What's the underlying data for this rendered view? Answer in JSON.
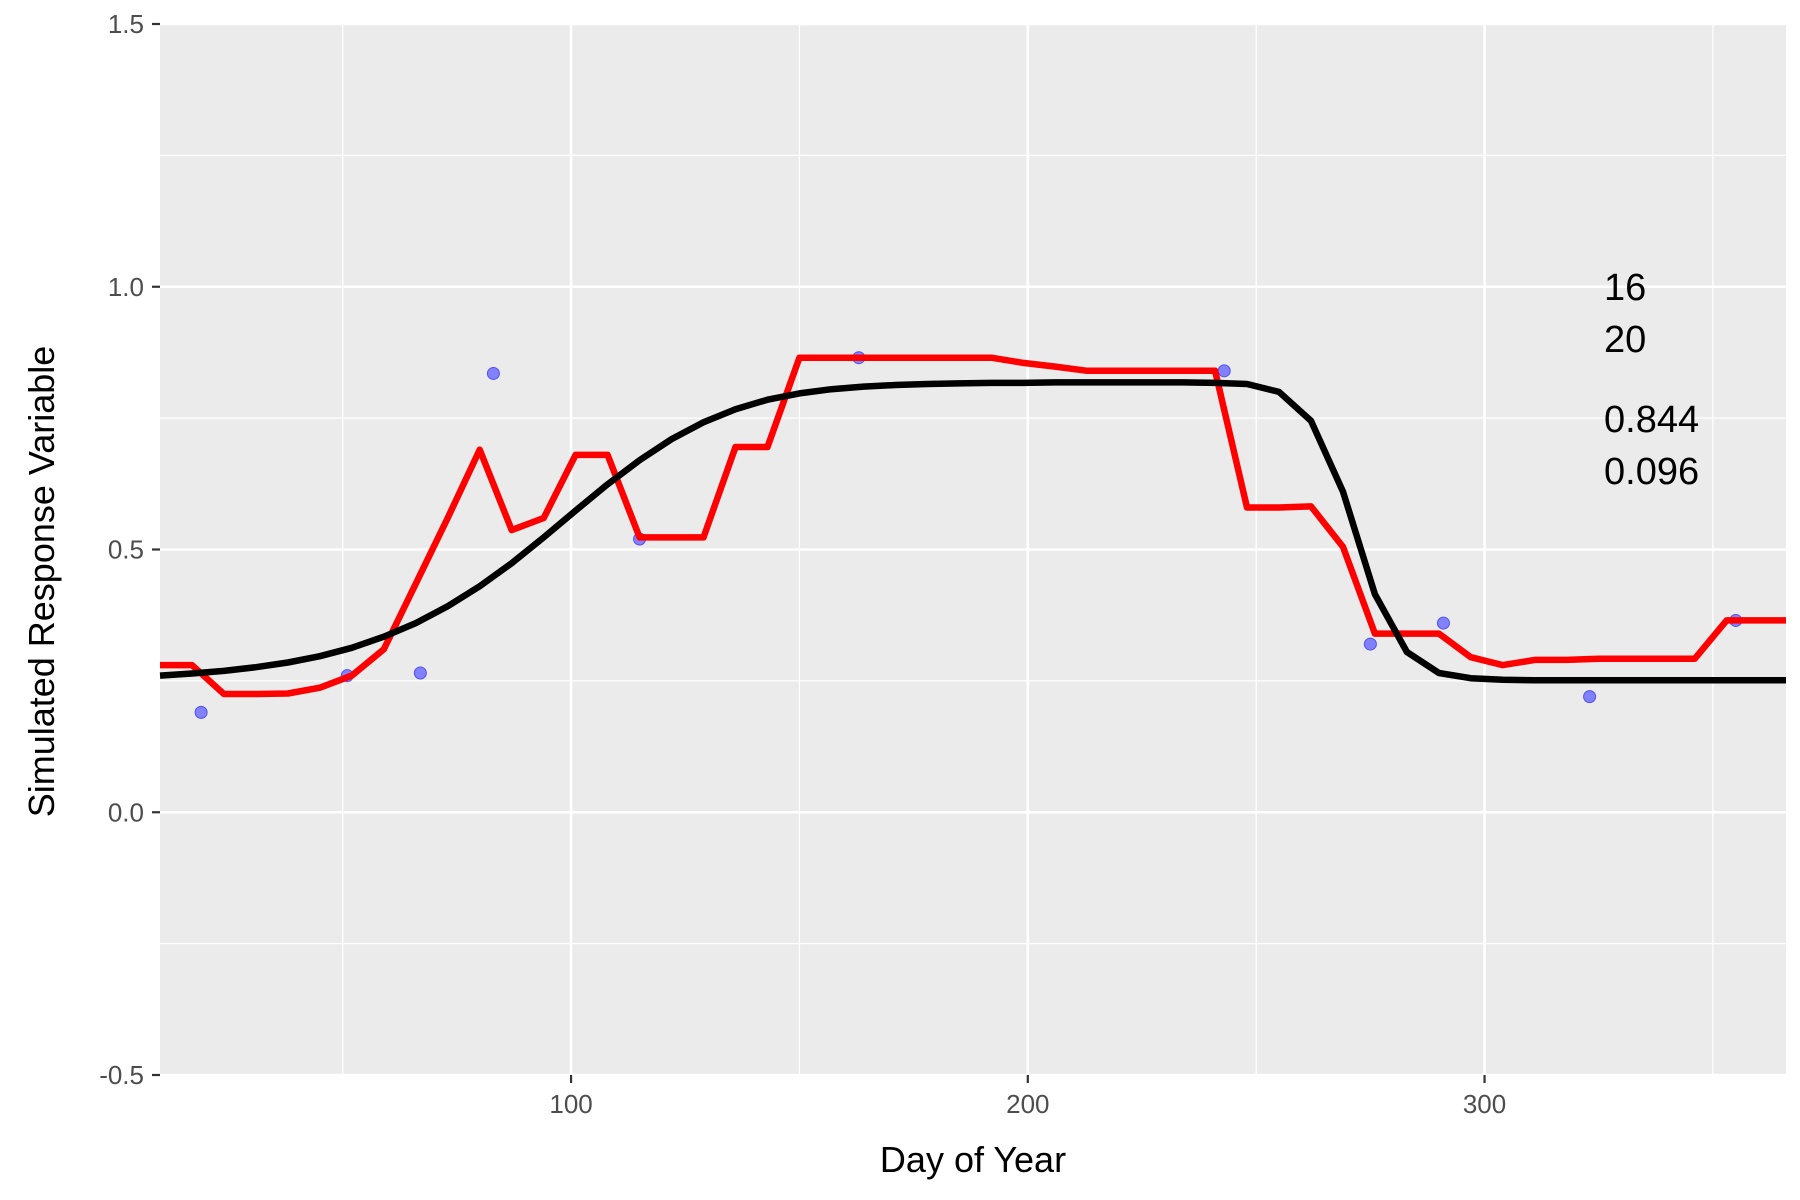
{
  "chart_data": {
    "type": "line",
    "title": "",
    "xlabel": "Day of Year",
    "ylabel": "Simulated Response Variable",
    "xlim": [
      10,
      366
    ],
    "ylim": [
      -0.5,
      1.5
    ],
    "x_ticks": [
      100,
      200,
      300
    ],
    "x_tick_labels": [
      "100",
      "200",
      "300"
    ],
    "y_ticks": [
      -0.5,
      0.0,
      0.5,
      1.0,
      1.5
    ],
    "y_tick_labels": [
      "-0.5",
      "0.0",
      "0.5",
      "1.0",
      "1.5"
    ],
    "x_minor_gridlines": [
      50,
      150,
      250,
      350
    ],
    "y_minor_gridlines": [
      -0.25,
      0.25,
      0.75,
      1.25
    ],
    "grid": true,
    "legend": "none",
    "panel_background": "#ebebeb",
    "gridline_color": "#ffffff",
    "annotations": [
      "16",
      "20",
      "0.844",
      "0.096"
    ],
    "scatter": {
      "name": "",
      "color": "#6666ff",
      "x": [
        19,
        51,
        67,
        83,
        115,
        163,
        243,
        275,
        291,
        323,
        355
      ],
      "y": [
        0.19,
        0.26,
        0.265,
        0.835,
        0.52,
        0.865,
        0.84,
        0.32,
        0.36,
        0.22,
        0.365
      ]
    },
    "series": [
      {
        "name": "",
        "color": "#ff0000",
        "x": [
          10,
          17,
          24,
          31,
          38,
          45,
          52,
          59,
          66,
          73,
          80,
          87,
          94,
          101,
          108,
          115,
          122,
          129,
          136,
          143,
          150,
          157,
          164,
          171,
          178,
          185,
          192,
          199,
          206,
          213,
          220,
          227,
          234,
          241,
          248,
          255,
          262,
          269,
          276,
          283,
          290,
          297,
          304,
          311,
          318,
          325,
          332,
          339,
          346,
          353,
          360,
          366
        ],
        "y": [
          0.28,
          0.28,
          0.225,
          0.225,
          0.226,
          0.237,
          0.26,
          0.31,
          0.435,
          0.56,
          0.69,
          0.537,
          0.56,
          0.68,
          0.68,
          0.523,
          0.523,
          0.523,
          0.695,
          0.695,
          0.865,
          0.865,
          0.865,
          0.865,
          0.865,
          0.865,
          0.865,
          0.855,
          0.848,
          0.84,
          0.84,
          0.84,
          0.84,
          0.84,
          0.58,
          0.58,
          0.582,
          0.505,
          0.34,
          0.34,
          0.34,
          0.295,
          0.28,
          0.29,
          0.29,
          0.292,
          0.292,
          0.292,
          0.292,
          0.365,
          0.365,
          0.365
        ]
      },
      {
        "name": "",
        "color": "#000000",
        "x": [
          10,
          17,
          24,
          31,
          38,
          45,
          52,
          59,
          66,
          73,
          80,
          87,
          94,
          101,
          108,
          115,
          122,
          129,
          136,
          143,
          150,
          157,
          164,
          171,
          178,
          185,
          192,
          199,
          206,
          213,
          220,
          227,
          234,
          241,
          248,
          255,
          262,
          269,
          276,
          283,
          290,
          297,
          304,
          311,
          318,
          325,
          332,
          339,
          346,
          353,
          360,
          366
        ],
        "y": [
          0.26,
          0.264,
          0.269,
          0.276,
          0.285,
          0.297,
          0.313,
          0.334,
          0.36,
          0.392,
          0.43,
          0.474,
          0.523,
          0.574,
          0.624,
          0.67,
          0.71,
          0.742,
          0.767,
          0.785,
          0.797,
          0.805,
          0.81,
          0.813,
          0.815,
          0.816,
          0.817,
          0.817,
          0.818,
          0.818,
          0.818,
          0.818,
          0.818,
          0.817,
          0.815,
          0.8,
          0.745,
          0.61,
          0.415,
          0.305,
          0.265,
          0.255,
          0.252,
          0.251,
          0.251,
          0.251,
          0.251,
          0.251,
          0.251,
          0.251,
          0.251,
          0.251
        ]
      }
    ]
  }
}
